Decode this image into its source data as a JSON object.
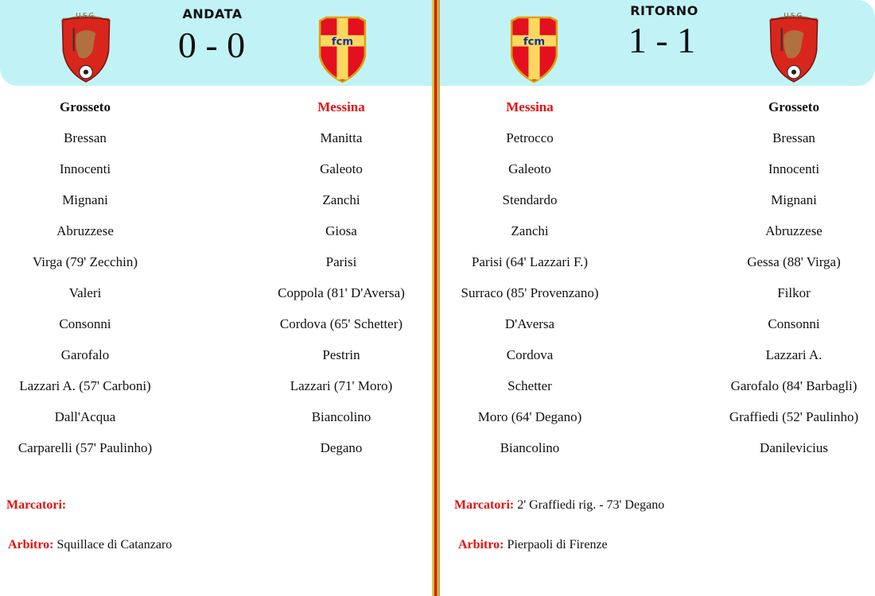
{
  "colors": {
    "header_bg": "#c1f3f6",
    "accent_red": "#e41010"
  },
  "andata": {
    "label": "ANDATA",
    "score": "0 - 0",
    "home_logo": "grosseto-crest",
    "away_logo": "messina-crest",
    "home": {
      "team": "Grosseto",
      "players": [
        "Bressan",
        "Innocenti",
        "Mignani",
        "Abruzzese",
        "Virga (79' Zecchin)",
        "Valeri",
        "Consonni",
        "Garofalo",
        "Lazzari A. (57' Carboni)",
        "Dall'Acqua",
        "Carparelli (57' Paulinho)"
      ]
    },
    "away": {
      "team": "Messina",
      "players": [
        "Manitta",
        "Galeoto",
        "Zanchi",
        "Giosa",
        "Parisi",
        "Coppola (81' D'Aversa)",
        "Cordova (65' Schetter)",
        "Pestrin",
        "Lazzari (71' Moro)",
        "Biancolino",
        "Degano"
      ]
    },
    "marcatori_label": "Marcatori:",
    "marcatori": "",
    "arbitro_label": "Arbitro:",
    "arbitro": "Squillace di Catanzaro"
  },
  "ritorno": {
    "label": "RITORNO",
    "score": "1 - 1",
    "home_logo": "messina-crest",
    "away_logo": "grosseto-crest",
    "home": {
      "team": "Messina",
      "players": [
        "Petrocco",
        "Galeoto",
        "Stendardo",
        "Zanchi",
        "Parisi (64' Lazzari F.)",
        "Surraco (85' Provenzano)",
        "D'Aversa",
        "Cordova",
        "Schetter",
        "Moro (64' Degano)",
        "Biancolino"
      ]
    },
    "away": {
      "team": "Grosseto",
      "players": [
        "Bressan",
        "Innocenti",
        "Mignani",
        "Abruzzese",
        "Gessa (88' Virga)",
        "Filkor",
        "Consonni",
        "Lazzari A.",
        "Garofalo (84' Barbagli)",
        "Graffiedi (52' Paulinho)",
        "Danilevicius"
      ]
    },
    "marcatori_label": "Marcatori:",
    "marcatori": "2' Graffiedi rig. - 73' Degano",
    "arbitro_label": "Arbitro:",
    "arbitro": "Pierpaoli di Firenze"
  }
}
